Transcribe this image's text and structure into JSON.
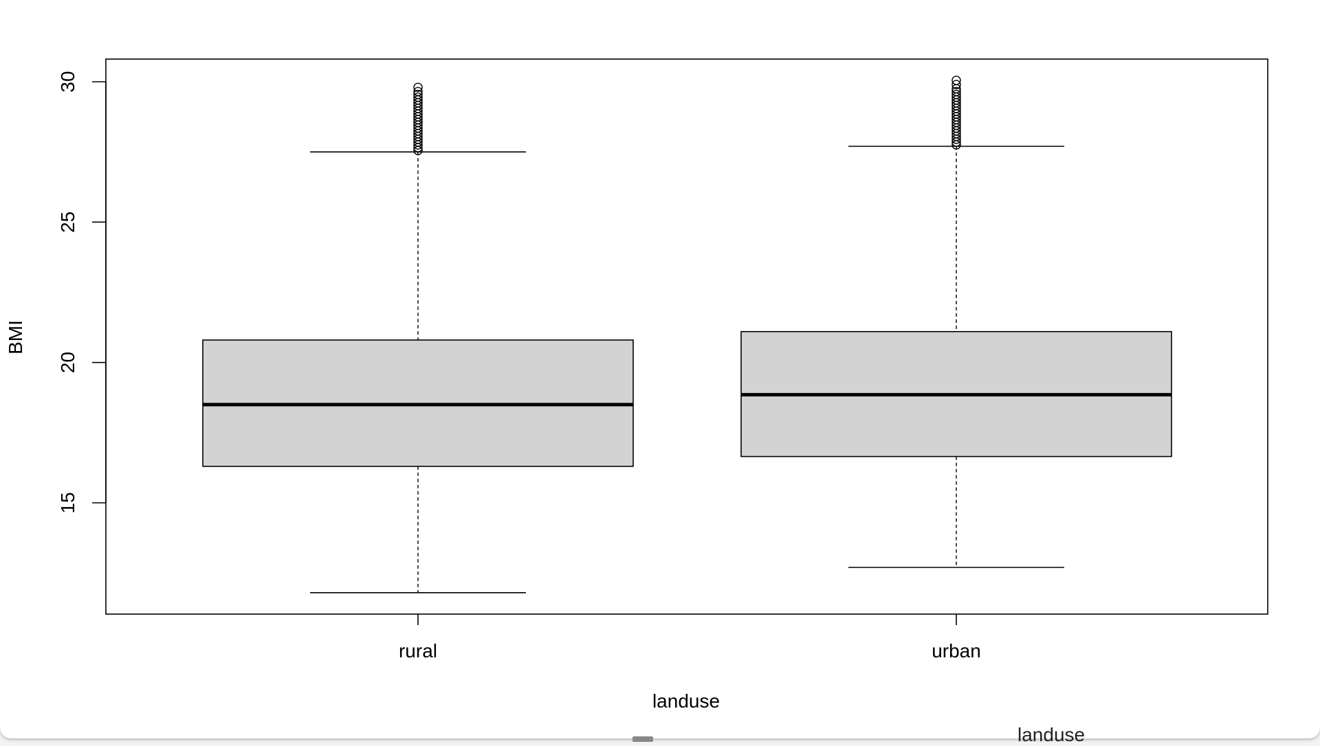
{
  "chart_data": {
    "type": "box",
    "xlabel": "landuse",
    "ylabel": "BMI",
    "ylim": [
      11.2,
      31.0
    ],
    "yticks": [
      15,
      20,
      25,
      30
    ],
    "categories": [
      "rural",
      "urban"
    ],
    "boxes": [
      {
        "name": "rural",
        "lower_whisker": 11.8,
        "q1": 16.3,
        "median": 18.5,
        "q3": 20.8,
        "upper_whisker": 27.5,
        "outliers": [
          27.55,
          27.65,
          27.75,
          27.85,
          27.95,
          28.05,
          28.15,
          28.25,
          28.35,
          28.45,
          28.55,
          28.65,
          28.75,
          28.85,
          28.95,
          29.05,
          29.15,
          29.25,
          29.35,
          29.45,
          29.55,
          29.65,
          29.8
        ]
      },
      {
        "name": "urban",
        "lower_whisker": 12.7,
        "q1": 16.65,
        "median": 18.85,
        "q3": 21.1,
        "upper_whisker": 27.7,
        "outliers": [
          27.75,
          27.85,
          27.95,
          28.05,
          28.15,
          28.25,
          28.35,
          28.45,
          28.55,
          28.65,
          28.75,
          28.85,
          28.95,
          29.05,
          29.15,
          29.25,
          29.35,
          29.45,
          29.55,
          29.65,
          29.75,
          29.9,
          30.05
        ]
      }
    ],
    "colors": {
      "box_fill": "#d3d3d3",
      "stroke": "#000000"
    }
  },
  "background_text": {
    "overlapped_label": "landuse"
  }
}
